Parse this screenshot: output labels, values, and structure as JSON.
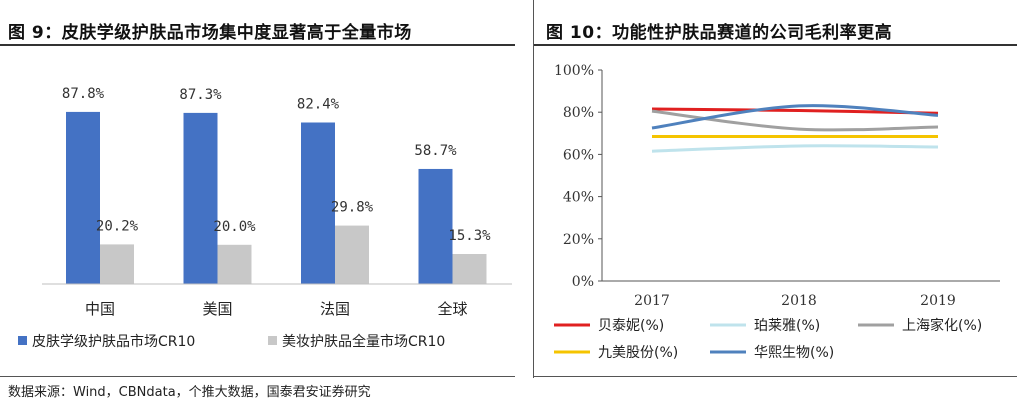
{
  "left": {
    "title": "图 9：皮肤学级护肤品市场集中度显著高于全量市场"
  },
  "right": {
    "title": "图 10：功能性护肤品赛道的公司毛利率更高"
  },
  "source": "数据来源：Wind，CBNdata，个推大数据，国泰君安证券研究",
  "chart_data": [
    {
      "type": "bar",
      "title": "",
      "categories": [
        "中国",
        "美国",
        "法国",
        "全球"
      ],
      "series": [
        {
          "name": "皮肤学级护肤品市场CR10",
          "values": [
            87.8,
            87.3,
            82.4,
            58.7
          ],
          "labels": [
            "87.8%",
            "87.3%",
            "82.4%",
            "58.7%"
          ],
          "color": "#4472c4"
        },
        {
          "name": "美妆护肤品全量市场CR10",
          "values": [
            20.2,
            20.0,
            29.8,
            15.3
          ],
          "labels": [
            "20.2%",
            "20.0%",
            "29.8%",
            "15.3%"
          ],
          "color": "#c8c8c8"
        }
      ],
      "ylim": [
        0,
        100
      ],
      "legend": "bottom",
      "grid": false
    },
    {
      "type": "line",
      "title": "",
      "x": [
        "2017",
        "2018",
        "2019"
      ],
      "series": [
        {
          "name": "贝泰妮(%)",
          "values": [
            81.5,
            80.8,
            79.5
          ],
          "color": "#e02020"
        },
        {
          "name": "珀莱雅(%)",
          "values": [
            61.5,
            64.0,
            63.5
          ],
          "color": "#bfe3ec"
        },
        {
          "name": "上海家化(%)",
          "values": [
            80.5,
            72.0,
            73.0
          ],
          "color": "#a0a0a0"
        },
        {
          "name": "九美股份(%)",
          "values": [
            68.5,
            68.5,
            68.5
          ],
          "color": "#f5c400"
        },
        {
          "name": "华熙生物(%)",
          "values": [
            72.5,
            83.0,
            78.5
          ],
          "color": "#4f81bd"
        }
      ],
      "ylim": [
        0,
        100
      ],
      "yticks": [
        "0%",
        "20%",
        "40%",
        "60%",
        "80%",
        "100%"
      ],
      "legend": "bottom",
      "grid": false
    }
  ]
}
